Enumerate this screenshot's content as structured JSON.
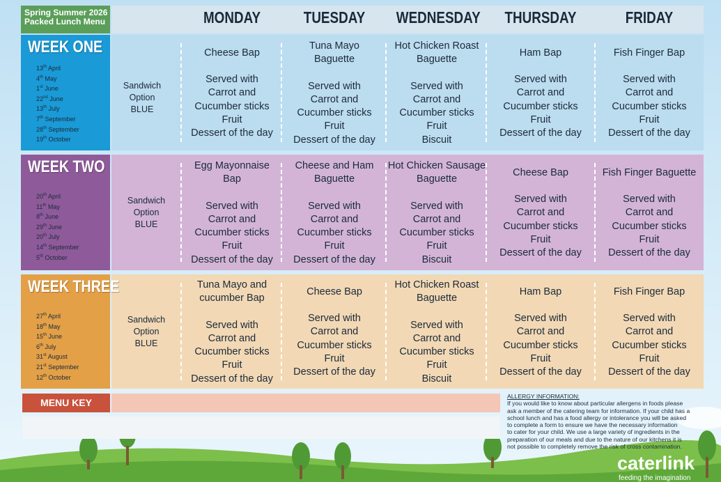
{
  "header": {
    "title_lines": [
      "Spring Summer 2026",
      "Packed Lunch Menu"
    ]
  },
  "days": [
    "MONDAY",
    "TUESDAY",
    "WEDNESDAY",
    "THURSDAY",
    "FRIDAY"
  ],
  "weeks": [
    {
      "name": "WEEK ONE",
      "dates": [
        {
          "day": "13",
          "suffix": "th",
          "month": "April"
        },
        {
          "day": "4",
          "suffix": "th",
          "month": "May"
        },
        {
          "day": "1",
          "suffix": "st",
          "month": "June"
        },
        {
          "day": "22",
          "suffix": "nd",
          "month": "June"
        },
        {
          "day": "13",
          "suffix": "th",
          "month": "July"
        },
        {
          "day": "7",
          "suffix": "th",
          "month": "September"
        },
        {
          "day": "28",
          "suffix": "th",
          "month": "September"
        },
        {
          "day": "19",
          "suffix": "th",
          "month": "October"
        }
      ],
      "option": [
        "Sandwich",
        "Option",
        "BLUE"
      ],
      "meals": [
        {
          "main": [
            "Cheese Bap"
          ],
          "sides": [
            "Served with",
            "Carrot and",
            "Cucumber sticks",
            "Fruit",
            "Dessert of the day"
          ]
        },
        {
          "main": [
            "Tuna Mayo",
            "Baguette"
          ],
          "sides": [
            "Served with",
            "Carrot and",
            "Cucumber sticks",
            "Fruit",
            "Dessert of the day"
          ]
        },
        {
          "main": [
            "Hot Chicken Roast",
            "Baguette"
          ],
          "sides": [
            "Served with",
            "Carrot and",
            "Cucumber sticks",
            "Fruit",
            "Biscuit"
          ]
        },
        {
          "main": [
            "Ham Bap"
          ],
          "sides": [
            "Served with",
            "Carrot and",
            "Cucumber sticks",
            "Fruit",
            "Dessert of the day"
          ]
        },
        {
          "main": [
            "Fish Finger Bap"
          ],
          "sides": [
            "Served with",
            "Carrot and",
            "Cucumber sticks",
            "Fruit",
            "Dessert of the day"
          ]
        }
      ]
    },
    {
      "name": "WEEK TWO",
      "dates": [
        {
          "day": "20",
          "suffix": "th",
          "month": "April"
        },
        {
          "day": "11",
          "suffix": "th",
          "month": "May"
        },
        {
          "day": "8",
          "suffix": "th",
          "month": "June"
        },
        {
          "day": "29",
          "suffix": "th",
          "month": "June"
        },
        {
          "day": "20",
          "suffix": "th",
          "month": "July"
        },
        {
          "day": "14",
          "suffix": "th",
          "month": "September"
        },
        {
          "day": "5",
          "suffix": "th",
          "month": "October"
        }
      ],
      "option": [
        "Sandwich",
        "Option",
        "BLUE"
      ],
      "meals": [
        {
          "main": [
            "Egg Mayonnaise",
            "Bap"
          ],
          "sides": [
            "Served with",
            "Carrot and",
            "Cucumber sticks",
            "Fruit",
            "Dessert of the day"
          ]
        },
        {
          "main": [
            "Cheese and Ham",
            "Baguette"
          ],
          "sides": [
            "Served with",
            "Carrot and",
            "Cucumber sticks",
            "Fruit",
            "Dessert of the day"
          ]
        },
        {
          "main": [
            "Hot Chicken Sausage",
            "Baguette"
          ],
          "sides": [
            "Served with",
            "Carrot and",
            "Cucumber sticks",
            "Fruit",
            "Biscuit"
          ]
        },
        {
          "main": [
            "Cheese Bap"
          ],
          "sides": [
            "Served with",
            "Carrot and",
            "Cucumber sticks",
            "Fruit",
            "Dessert of the day"
          ]
        },
        {
          "main": [
            "Fish Finger Baguette"
          ],
          "sides": [
            "Served with",
            "Carrot and",
            "Cucumber sticks",
            "Fruit",
            "Dessert of the day"
          ]
        }
      ]
    },
    {
      "name": "WEEK THREE",
      "dates": [
        {
          "day": "27",
          "suffix": "th",
          "month": "April"
        },
        {
          "day": "18",
          "suffix": "th",
          "month": "May"
        },
        {
          "day": "15",
          "suffix": "th",
          "month": "June"
        },
        {
          "day": "6",
          "suffix": "th",
          "month": "July"
        },
        {
          "day": "31",
          "suffix": "st",
          "month": "August"
        },
        {
          "day": "21",
          "suffix": "st",
          "month": "September"
        },
        {
          "day": "12",
          "suffix": "th",
          "month": "October"
        }
      ],
      "option": [
        "Sandwich",
        "Option",
        "BLUE"
      ],
      "meals": [
        {
          "main": [
            "Tuna Mayo and",
            "cucumber Bap"
          ],
          "sides": [
            "Served with",
            "Carrot and",
            "Cucumber sticks",
            "Fruit",
            "Dessert of the day"
          ]
        },
        {
          "main": [
            "Cheese Bap"
          ],
          "sides": [
            "Served with",
            "Carrot and",
            "Cucumber sticks",
            "Fruit",
            "Dessert of the day"
          ]
        },
        {
          "main": [
            "Hot Chicken Roast",
            "Baguette"
          ],
          "sides": [
            "Served with",
            "Carrot and",
            "Cucumber sticks",
            "Fruit",
            "Biscuit"
          ]
        },
        {
          "main": [
            "Ham Bap"
          ],
          "sides": [
            "Served with",
            "Carrot and",
            "Cucumber sticks",
            "Fruit",
            "Dessert of the day"
          ]
        },
        {
          "main": [
            "Fish Finger Bap"
          ],
          "sides": [
            "Served with",
            "Carrot and",
            "Cucumber sticks",
            "Fruit",
            "Dessert of the day"
          ]
        }
      ]
    }
  ],
  "menu_key": {
    "label": "MENU KEY"
  },
  "allergy": {
    "title": "ALLERGY INFORMATION:",
    "lines": [
      "If you would like to know about particular allergens in foods please",
      "ask a member of the catering team for information. If your child has a",
      "school lunch and has a food allergy or intolerance you will be asked",
      "to complete a form to ensure we have the necessary information",
      "to cater for your child. We use a large variety of ingredients in the",
      "preparation of our meals and due to the nature of our kitchens it is",
      "not possible to completely remove the risk of cross contamination."
    ]
  },
  "logo": {
    "name": "caterlink",
    "tagline": "feeding the imagination"
  }
}
